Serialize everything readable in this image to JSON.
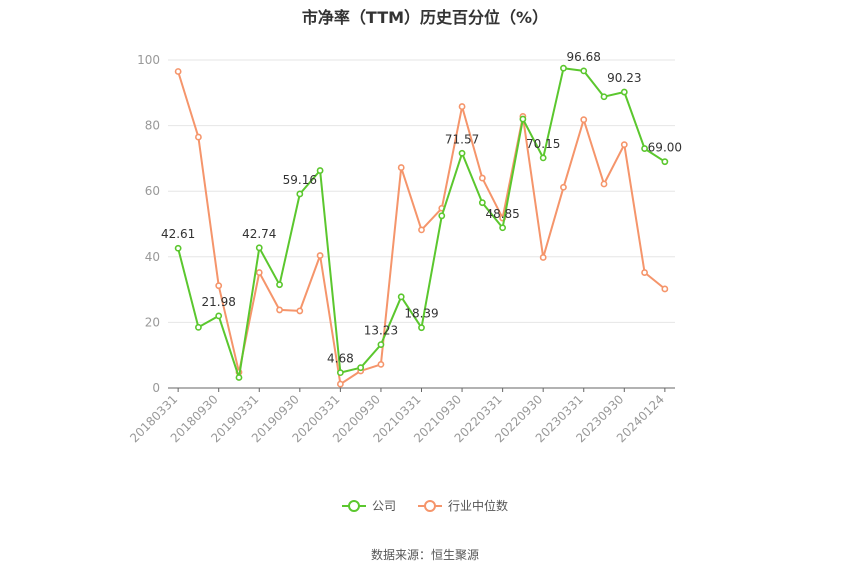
{
  "chart_data": {
    "type": "line",
    "title": "市净率（TTM）历史百分位（%）",
    "ylim": [
      0,
      100
    ],
    "yticks": [
      "0",
      "20",
      "40",
      "60",
      "80",
      "100"
    ],
    "xlabels": [
      "20180331",
      "20180930",
      "20190331",
      "20190930",
      "20200331",
      "20200930",
      "20210331",
      "20210930",
      "20220331",
      "20220930",
      "20230331",
      "20230930",
      "20240124"
    ],
    "xlabel_index": [
      0,
      2,
      4,
      6,
      8,
      10,
      12,
      14,
      16,
      18,
      20,
      22,
      24
    ],
    "grid": true,
    "legend_position": "bottom",
    "series": [
      {
        "name": "公司",
        "color": "#5bc72e",
        "values": [
          42.61,
          18.5,
          21.98,
          3.2,
          42.74,
          31.5,
          59.16,
          66.3,
          4.68,
          6.2,
          13.23,
          27.8,
          18.39,
          52.5,
          71.57,
          56.5,
          48.85,
          82.0,
          70.15,
          97.5,
          96.68,
          88.8,
          90.23,
          73.0,
          69.0
        ],
        "labels": {
          "0": "42.61",
          "2": "21.98",
          "4": "42.74",
          "6": "59.16",
          "8": "4.68",
          "10": "13.23",
          "12": "18.39",
          "14": "71.57",
          "16": "48.85",
          "18": "70.15",
          "20": "96.68",
          "22": "90.23",
          "24": "69.00"
        }
      },
      {
        "name": "行业中位数",
        "color": "#f5956b",
        "values": [
          96.5,
          76.5,
          31.2,
          4.8,
          35.2,
          23.8,
          23.5,
          40.4,
          1.2,
          5.2,
          7.2,
          67.2,
          48.2,
          54.8,
          85.8,
          64.0,
          51.8,
          82.8,
          39.8,
          61.2,
          81.8,
          62.2,
          74.2,
          35.2,
          30.2
        ]
      }
    ],
    "source": "数据来源：恒生聚源"
  }
}
